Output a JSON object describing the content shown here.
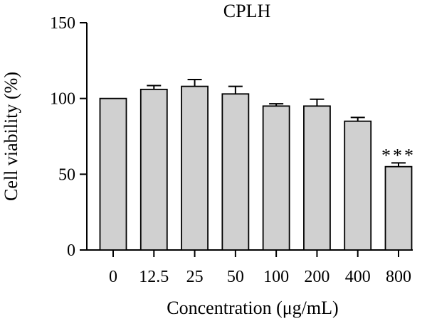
{
  "chart_data": {
    "type": "bar",
    "title": "CPLH",
    "xlabel": "Concentration (μg/mL)",
    "ylabel": "Cell viability (%)",
    "categories": [
      "0",
      "12.5",
      "25",
      "50",
      "100",
      "200",
      "400",
      "800"
    ],
    "values": [
      100,
      106,
      108,
      103,
      95,
      95,
      85,
      55
    ],
    "errors": [
      0,
      2.5,
      4.5,
      5,
      1.5,
      4.5,
      2.5,
      2.5
    ],
    "annotations": [
      {
        "category": "800",
        "text": "***"
      }
    ],
    "ylim": [
      0,
      150
    ],
    "yticks": [
      0,
      50,
      100,
      150
    ],
    "colors": {
      "bar_fill": "#d0d0d0",
      "bar_stroke": "#000000"
    }
  }
}
